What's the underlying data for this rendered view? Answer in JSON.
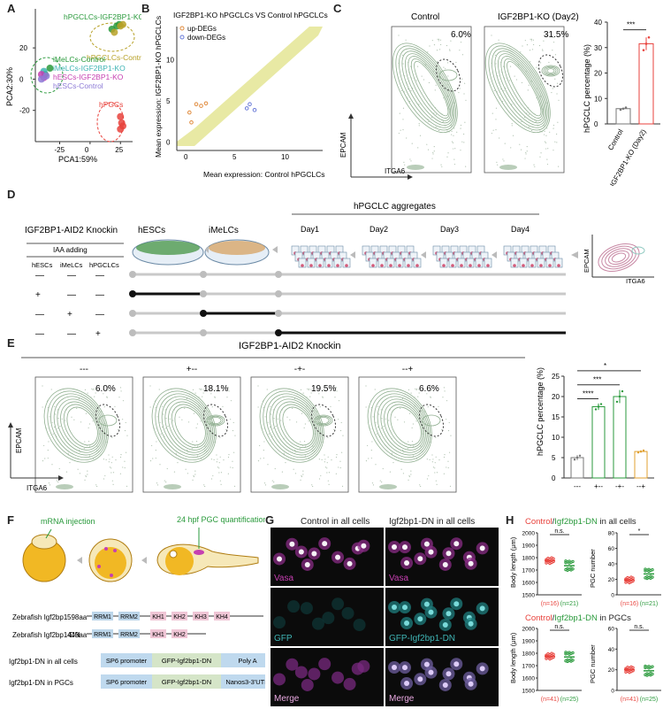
{
  "colors": {
    "magenta": "#c63fb1",
    "cyan": "#3fb4b4",
    "red": "#e8423c",
    "green": "#2a9a3c",
    "olive": "#b7a127",
    "flow_green": "#8fae8f",
    "yellow_scatter": "#e6e79a",
    "gray_line": "#c9c9c9"
  },
  "panels": {
    "A": "A",
    "B": "B",
    "C": "C",
    "D": "D",
    "E": "E",
    "F": "F",
    "G": "G",
    "H": "H"
  },
  "panel_a": {
    "chart_data": {
      "type": "scatter",
      "xlabel": "PCA1:59%",
      "ylabel": "PCA2:30%",
      "xticks": [
        "-25",
        "0",
        "25"
      ],
      "yticks": [
        "-20",
        "0",
        "20"
      ],
      "xlim": [
        -45,
        35
      ],
      "ylim": [
        -40,
        45
      ],
      "series": [
        {
          "name": "hPGCLCs-IGF2BP1-KO",
          "color": "#2a9a3c",
          "points": [
            [
              18,
              32
            ],
            [
              22,
              34
            ],
            [
              24,
              35
            ]
          ]
        },
        {
          "name": "hPGCLCs-Control",
          "color": "#b7a127",
          "points": [
            [
              20,
              30
            ],
            [
              25,
              34
            ],
            [
              27,
              35
            ]
          ]
        },
        {
          "name": "iMeLCs-Control",
          "color": "#2a9a3c",
          "points": [
            [
              -33,
              7
            ],
            [
              -37,
              3
            ]
          ]
        },
        {
          "name": "iMeLCs-IGF2BP1-KO",
          "color": "#3fb4b4",
          "points": [
            [
              -38,
              5
            ]
          ]
        },
        {
          "name": "hESCs-IGF2BP1-KO",
          "color": "#c63fb1",
          "points": [
            [
              -40,
              3
            ],
            [
              -38,
              1
            ]
          ]
        },
        {
          "name": "hESCs-Control",
          "color": "#8d7ad6",
          "points": [
            [
              -36,
              2
            ],
            [
              -40,
              0
            ]
          ]
        },
        {
          "name": "hPGCs",
          "color": "#e8423c",
          "points": [
            [
              25,
              -24
            ],
            [
              26,
              -28
            ],
            [
              25,
              -32
            ],
            [
              27,
              -30
            ]
          ]
        }
      ]
    }
  },
  "panel_b": {
    "title": "IGF2BP1-KO hPGCLCs VS Control hPGCLCs",
    "legend": [
      "up-DEGs",
      "down-DEGs"
    ],
    "chart_data": {
      "type": "scatter",
      "xlabel": "Mean expression: Control hPGCLCs",
      "ylabel": "Mean expression: IGF2BP1-KO hPGCLCs",
      "xticks": [
        "0",
        "5",
        "10"
      ],
      "yticks": [
        "0",
        "5",
        "10"
      ],
      "xlim": [
        -1,
        14
      ],
      "ylim": [
        -1,
        14
      ],
      "up_degs": [
        [
          0.3,
          3.6
        ],
        [
          1.0,
          4.6
        ],
        [
          1.5,
          4.4
        ],
        [
          2.0,
          4.7
        ],
        [
          0.5,
          2.4
        ]
      ],
      "down_degs": [
        [
          6.2,
          4.1
        ],
        [
          6.5,
          4.6
        ],
        [
          7.0,
          3.9
        ]
      ]
    }
  },
  "panel_c": {
    "titles": [
      "Control",
      "IGF2BP1-KO (Day2)"
    ],
    "percents": [
      "6.0%",
      "31.5%"
    ],
    "ylabel_flow": "EPCAM",
    "xlabel_flow": "ITGA6",
    "bar": {
      "ylabel": "hPGCLC percentage (%)",
      "yticks": [
        "0",
        "10",
        "20",
        "30",
        "40"
      ],
      "significance": "***",
      "chart_data": {
        "type": "bar",
        "categories": [
          "Control",
          "IGF2BP1-KO (Day2)"
        ],
        "values": [
          6.0,
          31.5
        ],
        "errors": [
          0.4,
          2.5
        ],
        "ylim": [
          0,
          40
        ]
      }
    }
  },
  "panel_d": {
    "knockin": "IGF2BP1-AID2 Knockin",
    "iaa": "IAA adding",
    "columns": [
      "hESCs",
      "iMeLCs",
      "hPGCLCs"
    ],
    "stage_hescs": "hESCs",
    "stage_imelcs": "iMeLCs",
    "aggregates": "hPGCLC aggregates",
    "days": [
      "Day1",
      "Day2",
      "Day3",
      "Day4"
    ],
    "rows": [
      [
        "—",
        "—",
        "—"
      ],
      [
        "+",
        "—",
        "—"
      ],
      [
        "—",
        "+",
        "—"
      ],
      [
        "—",
        "—",
        "+"
      ]
    ],
    "result_y": "EPCAM",
    "result_x": "ITGA6"
  },
  "panel_e": {
    "title": "IGF2BP1-AID2 Knockin",
    "titles": [
      "---",
      "+--",
      "-+-",
      "--+"
    ],
    "percents": [
      "6.0%",
      "18.1%",
      "19.5%",
      "6.6%"
    ],
    "ylabel_flow": "EPCAM",
    "xlabel_flow": "ITGA6",
    "bar": {
      "ylabel": "hPGCLC percentage (%)",
      "yticks": [
        "0",
        "5",
        "10",
        "15",
        "20",
        "25"
      ],
      "sig": [
        "****",
        "***",
        "*"
      ],
      "chart_data": {
        "type": "bar",
        "categories": [
          "---",
          "+--",
          "-+-",
          "--+"
        ],
        "values": [
          5.0,
          17.5,
          20.0,
          6.5
        ],
        "errors": [
          0.6,
          0.8,
          1.6,
          0.3
        ],
        "ylim": [
          0,
          25
        ]
      }
    }
  },
  "panel_f": {
    "inj": "mRNA injection",
    "quant": "24 hpf PGC quantification",
    "gene_rows": [
      {
        "name": "Zebrafish Igf2bp1",
        "len": "598aa",
        "domains": [
          "RRM1",
          "RRM2",
          "KH1",
          "KH2",
          "KH3",
          "KH4"
        ]
      },
      {
        "name": "Zebrafish Igf2bp1-DN",
        "len": "449aa",
        "domains": [
          "RRM1",
          "RRM2",
          "KH1",
          "KH2"
        ]
      }
    ],
    "constructs": [
      {
        "name": "Igf2bp1-DN in all cells",
        "parts": [
          "SP6 promoter",
          "GFP-Igf2bp1-DN",
          "Poly A"
        ]
      },
      {
        "name": "Igf2bp1-DN in PGCs",
        "parts": [
          "SP6 promoter",
          "GFP-Igf2bp1-DN",
          "Nanos3-3'UTR"
        ]
      }
    ]
  },
  "panel_g": {
    "col_titles": [
      "Control in all cells",
      "Igf2bp1-DN in all cells"
    ],
    "labels": [
      [
        "Vasa",
        "Vasa"
      ],
      [
        "GFP",
        "GFP-Igf2bp1-DN"
      ],
      [
        "Merge",
        "Merge"
      ]
    ]
  },
  "panel_h": {
    "title1_a": "Control",
    "title1_b": "/",
    "title1_c": "Igf2bp1-DN",
    "title1_d": " in all cells",
    "title2_a": "Control",
    "title2_b": "/",
    "title2_c": "Igf2bp1-DN",
    "title2_d": " in PGCs",
    "ylabel_len": "Body length (μm)",
    "ylabel_pgc": "PGC number",
    "len_ticks": [
      "1500",
      "1600",
      "1700",
      "1800",
      "1900",
      "2000"
    ],
    "pgc_ticks1": [
      "0",
      "20",
      "40",
      "60",
      "80"
    ],
    "pgc_ticks2": [
      "0",
      "20",
      "40",
      "60"
    ],
    "ns": "n.s.",
    "star": "*",
    "n1": [
      "(n=16)",
      "(n=21)"
    ],
    "n2": [
      "(n=41)",
      "(n=25)"
    ],
    "chart_data": [
      {
        "type": "scatter",
        "title": "Body length, all cells",
        "categories": [
          "Control",
          "Igf2bp1-DN"
        ],
        "means": [
          1775,
          1735
        ]
      },
      {
        "type": "scatter",
        "title": "PGC number, all cells",
        "categories": [
          "Control",
          "Igf2bp1-DN"
        ],
        "means": [
          19,
          27
        ]
      },
      {
        "type": "scatter",
        "title": "Body length, PGCs",
        "categories": [
          "Control",
          "Igf2bp1-DN"
        ],
        "means": [
          1775,
          1770
        ]
      },
      {
        "type": "scatter",
        "title": "PGC number, PGCs",
        "categories": [
          "Control",
          "Igf2bp1-DN"
        ],
        "means": [
          20,
          19
        ]
      }
    ]
  }
}
